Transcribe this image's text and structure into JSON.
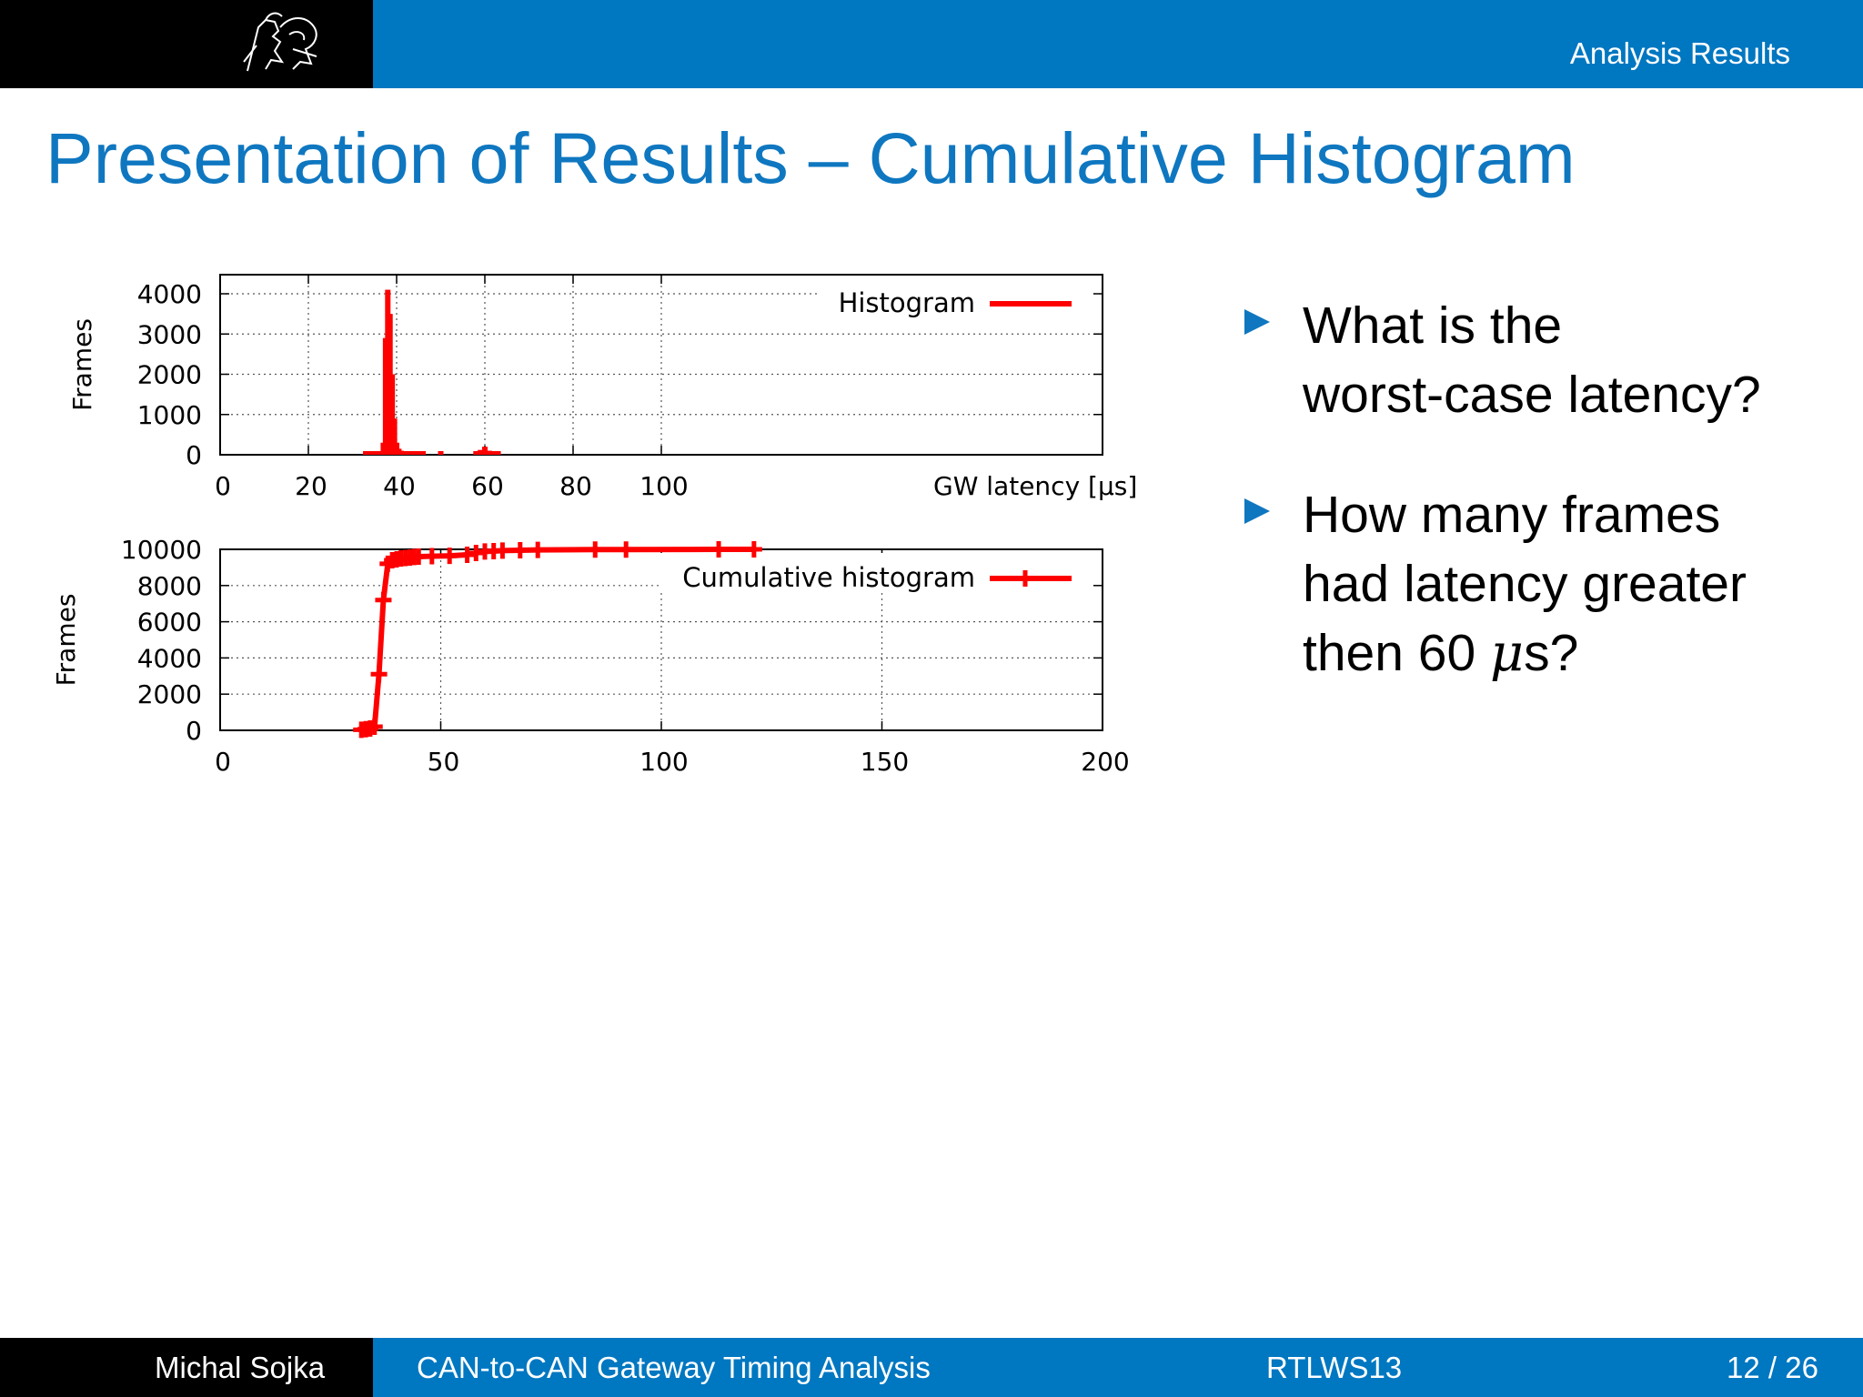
{
  "header": {
    "section": "Analysis Results"
  },
  "title": "Presentation of Results – Cumulative Histogram",
  "bullets": [
    {
      "lines": [
        "What is the",
        "worst-case latency?"
      ]
    },
    {
      "lines": [
        "How many frames",
        "had latency greater",
        "then 60 "
      ],
      "unit": "s?",
      "symbol": "μ"
    }
  ],
  "footer": {
    "author": "Michal Sojka",
    "talk": "CAN-to-CAN Gateway Timing Analysis",
    "venue": "RTLWS13",
    "page": "12 / 26"
  },
  "chart_data": [
    {
      "type": "bar",
      "legend": "Histogram",
      "legend_position": "top-right",
      "ylabel": "Frames",
      "xlabel": "GW latency [µs]",
      "xlim": [
        0,
        200
      ],
      "ylim": [
        0,
        4500
      ],
      "xticks": [
        0,
        20,
        40,
        60,
        80,
        100
      ],
      "yticks": [
        0,
        1000,
        2000,
        3000,
        4000
      ],
      "grid": true,
      "color": "#ff0000",
      "x": [
        33,
        34,
        35,
        36,
        37,
        37.5,
        38,
        38.5,
        39,
        39.5,
        40,
        40.5,
        41,
        42,
        43,
        44,
        45,
        46,
        50,
        58,
        59,
        60,
        61,
        62,
        63
      ],
      "values": [
        20,
        30,
        40,
        80,
        300,
        2900,
        4100,
        3500,
        2000,
        900,
        300,
        150,
        100,
        60,
        50,
        40,
        60,
        30,
        20,
        60,
        120,
        200,
        100,
        50,
        20
      ]
    },
    {
      "type": "line",
      "legend": "Cumulative histogram",
      "legend_position": "top-right",
      "ylabel": "Frames",
      "xlim": [
        0,
        200
      ],
      "ylim": [
        0,
        10000
      ],
      "xticks": [
        0,
        50,
        100,
        150,
        200
      ],
      "yticks": [
        0,
        2000,
        4000,
        6000,
        8000,
        10000
      ],
      "grid": true,
      "color": "#ff0000",
      "x": [
        32,
        33,
        34,
        35,
        36,
        37,
        38,
        39,
        40,
        41,
        42,
        43,
        44,
        45,
        48,
        52,
        56,
        58,
        60,
        62,
        64,
        68,
        72,
        85,
        92,
        113,
        121
      ],
      "y": [
        30,
        60,
        100,
        200,
        3100,
        7200,
        9200,
        9400,
        9450,
        9500,
        9520,
        9550,
        9580,
        9600,
        9620,
        9640,
        9700,
        9800,
        9880,
        9900,
        9930,
        9950,
        9970,
        9985,
        9990,
        9998,
        10000
      ]
    }
  ]
}
